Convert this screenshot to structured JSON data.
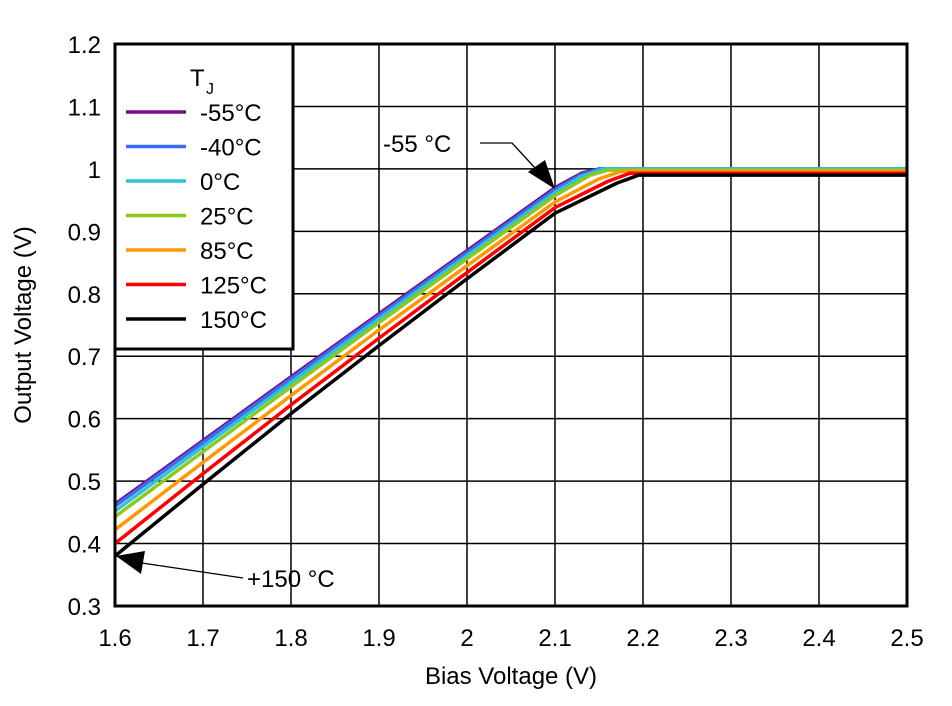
{
  "chart_data": {
    "type": "line",
    "title": "",
    "xlabel": "Bias Voltage (V)",
    "ylabel": "Output Voltage (V)",
    "xlim": [
      1.6,
      2.5
    ],
    "ylim": [
      0.3,
      1.2
    ],
    "xticks": [
      "1.6",
      "1.7",
      "1.8",
      "1.9",
      "2",
      "2.1",
      "2.2",
      "2.3",
      "2.4",
      "2.5"
    ],
    "yticks": [
      "0.3",
      "0.4",
      "0.5",
      "0.6",
      "0.7",
      "0.8",
      "0.9",
      "1",
      "1.1",
      "1.2"
    ],
    "grid": true,
    "legend": {
      "title_main": "T",
      "title_sub": "J",
      "placement": "top-left"
    },
    "series": [
      {
        "name": "-55°C",
        "color": "#7b0d8c",
        "x": [
          1.6,
          1.7,
          1.8,
          1.9,
          2.0,
          2.1,
          2.13,
          2.15,
          2.5
        ],
        "y": [
          0.463,
          0.565,
          0.667,
          0.768,
          0.869,
          0.97,
          0.993,
          1.0,
          1.0
        ]
      },
      {
        "name": "-40°C",
        "color": "#3a6df0",
        "x": [
          1.6,
          1.7,
          1.8,
          1.9,
          2.0,
          2.1,
          2.13,
          2.15,
          2.5
        ],
        "y": [
          0.46,
          0.562,
          0.664,
          0.765,
          0.866,
          0.967,
          0.991,
          1.0,
          1.0
        ]
      },
      {
        "name": "0°C",
        "color": "#2ec4d4",
        "x": [
          1.6,
          1.7,
          1.8,
          1.9,
          2.0,
          2.1,
          2.13,
          2.155,
          2.5
        ],
        "y": [
          0.452,
          0.555,
          0.658,
          0.76,
          0.861,
          0.962,
          0.988,
          1.0,
          1.0
        ]
      },
      {
        "name": "25°C",
        "color": "#8cc81e",
        "x": [
          1.6,
          1.7,
          1.8,
          1.9,
          2.0,
          2.1,
          2.14,
          2.16,
          2.5
        ],
        "y": [
          0.443,
          0.547,
          0.651,
          0.754,
          0.856,
          0.957,
          0.99,
          0.998,
          0.998
        ]
      },
      {
        "name": "85°C",
        "color": "#ff9900",
        "x": [
          1.6,
          1.7,
          1.8,
          1.9,
          2.0,
          2.1,
          2.15,
          2.175,
          2.5
        ],
        "y": [
          0.422,
          0.53,
          0.637,
          0.742,
          0.845,
          0.947,
          0.984,
          0.996,
          0.996
        ]
      },
      {
        "name": "125°C",
        "color": "#ff0000",
        "x": [
          1.6,
          1.7,
          1.8,
          1.9,
          2.0,
          2.1,
          2.16,
          2.185,
          2.5
        ],
        "y": [
          0.4,
          0.512,
          0.622,
          0.729,
          0.834,
          0.938,
          0.98,
          0.993,
          0.993
        ]
      },
      {
        "name": "150°C",
        "color": "#000000",
        "x": [
          1.6,
          1.7,
          1.8,
          1.9,
          2.0,
          2.1,
          2.17,
          2.195,
          2.5
        ],
        "y": [
          0.38,
          0.495,
          0.608,
          0.717,
          0.824,
          0.929,
          0.977,
          0.99,
          0.99
        ]
      }
    ],
    "annotations": [
      {
        "text": "-55 °C",
        "points_to": [
          2.1,
          0.97
        ]
      },
      {
        "text": "+150 °C",
        "points_to": [
          1.6,
          0.38
        ]
      }
    ]
  }
}
